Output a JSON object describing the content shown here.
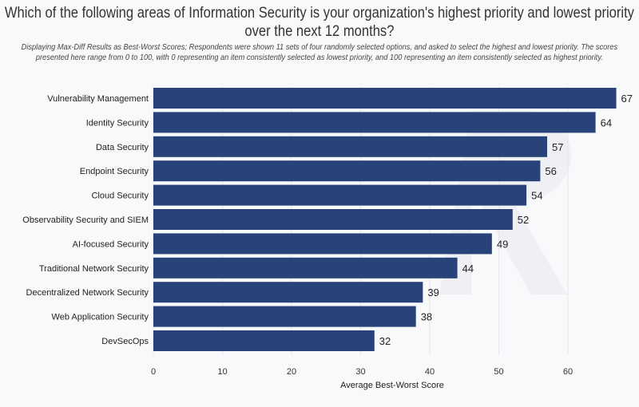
{
  "chart_data": {
    "type": "bar",
    "orientation": "horizontal",
    "title": "Which of the following areas of Information Security is your organization's highest priority and lowest priority over the next 12 months?",
    "subtitle": "Displaying Max-Diff Results as Best-Worst Scores; Respondents were shown 11 sets of four randomly selected options, and asked to select the highest and lowest priority. The scores presented here range from 0 to 100, with 0 representing an item consistently selected as lowest priority, and 100 representing an item consistently selected as highest priority.",
    "categories": [
      "Vulnerability Management",
      "Identity Security",
      "Data Security",
      "Endpoint Security",
      "Cloud Security",
      "Observability Security and SIEM",
      "AI-focused Security",
      "Traditional Network Security",
      "Decentralized Network Security",
      "Web Application Security",
      "DevSecOps"
    ],
    "values": [
      67,
      64,
      57,
      56,
      54,
      52,
      49,
      44,
      39,
      38,
      32
    ],
    "xlabel": "Average Best-Worst Score",
    "ylabel": "",
    "xlim": [
      0,
      68
    ],
    "xticks": [
      0,
      10,
      20,
      30,
      40,
      50,
      60
    ],
    "grid": true,
    "bar_color": "#27437a",
    "data_labels": true
  }
}
